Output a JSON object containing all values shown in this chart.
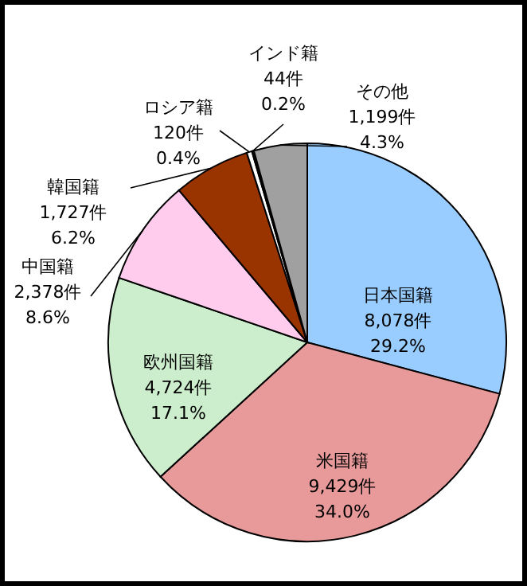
{
  "chart_data": {
    "type": "pie",
    "categories": [
      "日本国籍",
      "米国籍",
      "欧州国籍",
      "中国籍",
      "韓国籍",
      "ロシア籍",
      "インド籍",
      "その他"
    ],
    "values": [
      8078,
      9429,
      4724,
      2378,
      1727,
      120,
      44,
      1199
    ],
    "value_labels": [
      "8,078件\n29.2%",
      "9,429件\n34.0%",
      "4,724件\n17.1%",
      "2,378件\n8.6%",
      "1,727件\n6.2%",
      "120件\n0.4%",
      "44件\n0.2%",
      "1,199件\n4.3%"
    ],
    "colors": [
      "#99ccff",
      "#e89a9a",
      "#cceecc",
      "#ffccee",
      "#993300",
      "#ffffff",
      "#222222",
      "#a0a0a0"
    ]
  }
}
